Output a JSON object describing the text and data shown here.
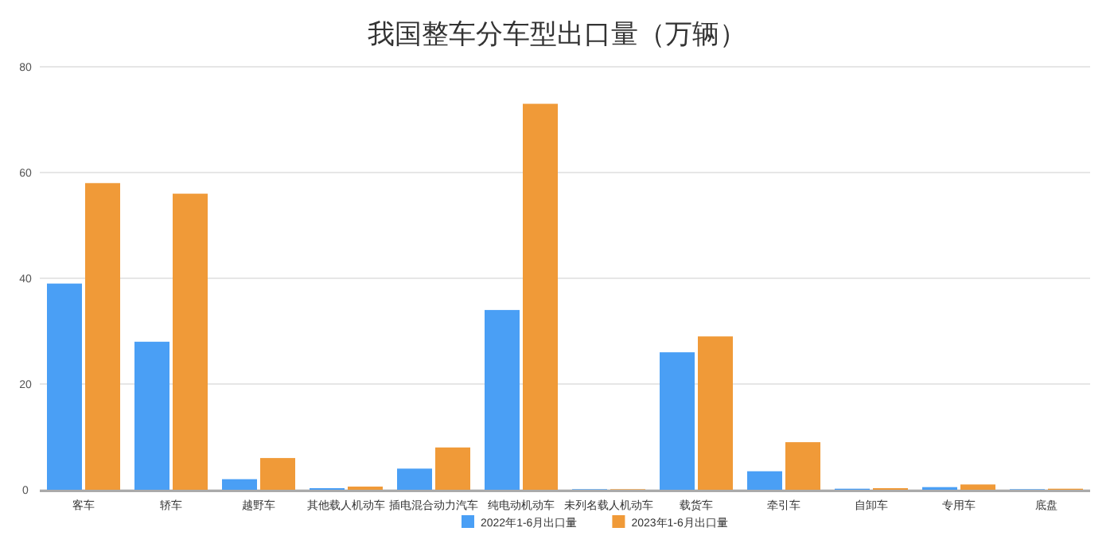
{
  "chart_data": {
    "type": "bar",
    "title": "我国整车分车型出口量（万辆）",
    "categories": [
      "客车",
      "轿车",
      "越野车",
      "其他载人机动车",
      "插电混合动力汽车",
      "纯电动机动车",
      "未列名载人机动车",
      "载货车",
      "牵引车",
      "自卸车",
      "专用车",
      "底盘"
    ],
    "series": [
      {
        "name": "2022年1-6月出口量",
        "color": "#4a9ff5",
        "values": [
          39,
          28,
          2,
          0.3,
          4,
          34,
          0.1,
          26,
          3.5,
          0.2,
          0.5,
          0.1
        ]
      },
      {
        "name": "2023年1-6月出口量",
        "color": "#f09a38",
        "values": [
          58,
          56,
          6,
          0.6,
          8,
          73,
          0.1,
          29,
          9,
          0.3,
          1,
          0.2
        ]
      }
    ],
    "ylim": [
      0,
      80
    ],
    "yticks": [
      0,
      20,
      40,
      60,
      80
    ],
    "grid": "y",
    "legend": "bottom"
  }
}
